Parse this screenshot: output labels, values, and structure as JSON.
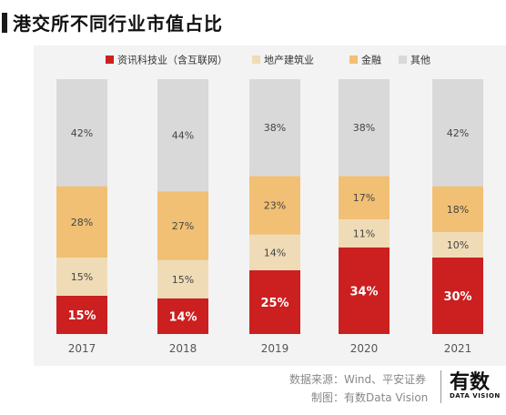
{
  "header": {
    "title": "港交所不同行业市值占比"
  },
  "footer": {
    "source": "数据来源：Wind、平安证券",
    "credit": "制图：有数Data Vision"
  },
  "brand": {
    "name": "有数",
    "tagline": "DATA VISION"
  },
  "colors": {
    "it": "#cc1f1f",
    "realestate": "#efdcb6",
    "finance": "#f1c074",
    "other": "#d9d9d9",
    "panel": "#f3f3f3"
  },
  "chart_data": {
    "type": "bar",
    "stacked": true,
    "percent_stacked": true,
    "categories": [
      "2017",
      "2018",
      "2019",
      "2020",
      "2021"
    ],
    "series": [
      {
        "name": "资讯科技业（含互联网）",
        "values": [
          15,
          14,
          25,
          34,
          30
        ],
        "labels": [
          "15%",
          "14%",
          "25%",
          "34%",
          "30%"
        ],
        "color": "#cc1f1f"
      },
      {
        "name": "地产建筑业",
        "values": [
          15,
          15,
          14,
          11,
          10
        ],
        "labels": [
          "15%",
          "15%",
          "14%",
          "11%",
          "10%"
        ],
        "color": "#efdcb6"
      },
      {
        "name": "金融",
        "values": [
          28,
          27,
          23,
          17,
          18
        ],
        "labels": [
          "28%",
          "27%",
          "23%",
          "17%",
          "18%"
        ],
        "color": "#f1c074"
      },
      {
        "name": "其他",
        "values": [
          42,
          44,
          38,
          38,
          42
        ],
        "labels": [
          "42%",
          "44%",
          "38%",
          "38%",
          "42%"
        ],
        "color": "#d9d9d9"
      }
    ],
    "ylim": [
      0,
      100
    ],
    "legend_position": "top",
    "grid": false
  }
}
